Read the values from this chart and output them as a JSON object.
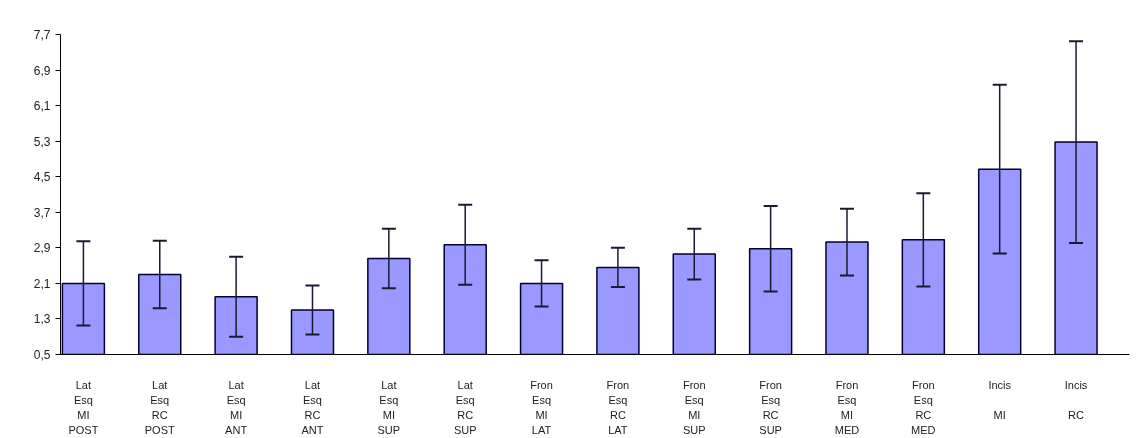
{
  "chart_data": {
    "type": "bar",
    "categories": [
      "Lat\nEsq\nMI\nPOST",
      "Lat\nEsq\nRC\nPOST",
      "Lat\nEsq\nMI\nANT",
      "Lat\nEsq\nRC\nANT",
      "Lat\nEsq\nMI\nSUP",
      "Lat\nEsq\nRC\nSUP",
      "Fron\nEsq\nMI\nLAT",
      "Fron\nEsq\nRC\nLAT",
      "Fron\nEsq\nMI\nSUP",
      "Fron\nEsq\nRC\nSUP",
      "Fron\nEsq\nMI\nMED",
      "Fron\nEsq\nRC\nMED",
      "Incis\n\nMI",
      "Incis\n\nRC"
    ],
    "values": [
      2.1,
      2.3,
      1.8,
      1.5,
      2.66,
      2.97,
      2.1,
      2.46,
      2.76,
      2.88,
      3.03,
      3.08,
      4.67,
      5.28
    ],
    "errors": [
      0.95,
      0.76,
      0.9,
      0.55,
      0.67,
      0.9,
      0.52,
      0.44,
      0.57,
      0.96,
      0.75,
      1.05,
      1.9,
      2.27
    ],
    "color": "#9999ff",
    "ylim": [
      0.5,
      7.7
    ],
    "yticks": [
      {
        "value": 0.5,
        "label": "0,5"
      },
      {
        "value": 1.3,
        "label": "1,3"
      },
      {
        "value": 2.1,
        "label": "2,1"
      },
      {
        "value": 2.9,
        "label": "2,9"
      },
      {
        "value": 3.7,
        "label": "3,7"
      },
      {
        "value": 4.5,
        "label": "4,5"
      },
      {
        "value": 5.3,
        "label": "5,3"
      },
      {
        "value": 6.1,
        "label": "6,1"
      },
      {
        "value": 6.9,
        "label": "6,9"
      },
      {
        "value": 7.7,
        "label": "7,7"
      }
    ],
    "grid": false
  }
}
